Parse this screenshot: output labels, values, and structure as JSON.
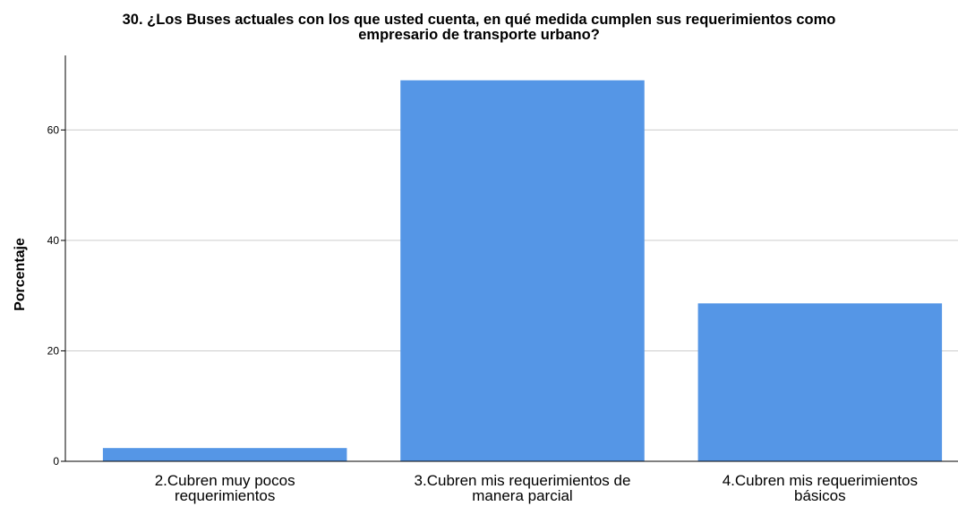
{
  "chart_data": {
    "type": "bar",
    "title_lines": [
      "30. ¿Los Buses actuales con los que usted cuenta, en qué medida cumplen sus requerimientos como",
      "empresario de transporte urbano?"
    ],
    "categories": [
      [
        "2.Cubren muy pocos",
        "requerimientos"
      ],
      [
        "3.Cubren mis requerimientos de",
        "manera parcial"
      ],
      [
        "4.Cubren mis requerimientos",
        "básicos"
      ]
    ],
    "values": [
      2.4,
      69.0,
      28.6
    ],
    "ylabel": "Porcentaje",
    "xlabel": "",
    "ylim": [
      0,
      73.5
    ],
    "yticks": [
      0,
      20,
      40,
      60
    ],
    "grid": true,
    "bar_color": "#5596e6",
    "grid_color": "#cccccc",
    "axis_color": "#000000"
  }
}
